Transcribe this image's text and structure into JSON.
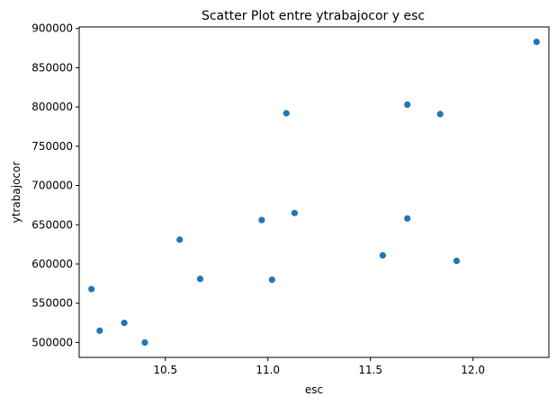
{
  "chart_data": {
    "type": "scatter",
    "title": "Scatter Plot entre ytrabajocor y esc",
    "xlabel": "esc",
    "ylabel": "ytrabajocor",
    "xlim": [
      10.08,
      12.37
    ],
    "ylim": [
      481000,
      902000
    ],
    "xticks": [
      10.5,
      11.0,
      11.5,
      12.0
    ],
    "xtick_labels": [
      "10.5",
      "11.0",
      "11.5",
      "12.0"
    ],
    "yticks": [
      500000,
      550000,
      600000,
      650000,
      700000,
      750000,
      800000,
      850000,
      900000
    ],
    "ytick_labels": [
      "500000",
      "550000",
      "600000",
      "650000",
      "700000",
      "750000",
      "800000",
      "850000",
      "900000"
    ],
    "grid": false,
    "legend": "none",
    "marker_color": "#1f77b4",
    "series": [
      {
        "points": [
          {
            "x": 10.14,
            "y": 568000
          },
          {
            "x": 10.18,
            "y": 515000
          },
          {
            "x": 10.3,
            "y": 525000
          },
          {
            "x": 10.4,
            "y": 500000
          },
          {
            "x": 10.57,
            "y": 631000
          },
          {
            "x": 10.67,
            "y": 581000
          },
          {
            "x": 10.97,
            "y": 656000
          },
          {
            "x": 11.02,
            "y": 580000
          },
          {
            "x": 11.09,
            "y": 792000
          },
          {
            "x": 11.13,
            "y": 665000
          },
          {
            "x": 11.56,
            "y": 611000
          },
          {
            "x": 11.68,
            "y": 803000
          },
          {
            "x": 11.68,
            "y": 658000
          },
          {
            "x": 11.84,
            "y": 791000
          },
          {
            "x": 11.92,
            "y": 604000
          },
          {
            "x": 12.31,
            "y": 883000
          }
        ]
      }
    ]
  }
}
